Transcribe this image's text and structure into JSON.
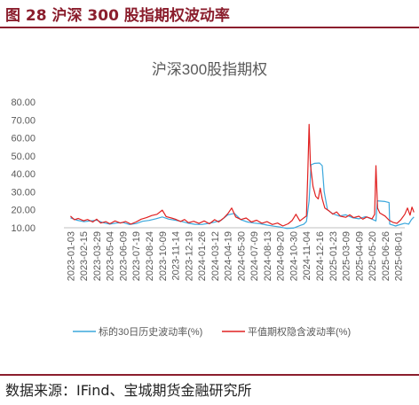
{
  "figure": {
    "title": "图 28 沪深 300 股指期权波动率",
    "source": "数据来源：IFind、宝城期货金融研究所"
  },
  "chart_data": {
    "type": "line",
    "title": "沪深300股指期权",
    "xlabel": "",
    "ylabel": "",
    "ylim": [
      10,
      80
    ],
    "yticks": [
      "10.00",
      "20.00",
      "30.00",
      "40.00",
      "50.00",
      "60.00",
      "70.00",
      "80.00"
    ],
    "grid": false,
    "legend": "bottom",
    "xticks": [
      "2023-01-03",
      "2023-02-15",
      "2023-03-29",
      "2023-05-04",
      "2023-06-09",
      "2023-07-19",
      "2023-08-24",
      "2023-10-09",
      "2023-11-14",
      "2023-12-19",
      "2024-01-26",
      "2024-03-12",
      "2024-04-19",
      "2024-05-30",
      "2024-07-09",
      "2024-08-13",
      "2024-09-20",
      "2024-10-30",
      "2024-11-04",
      "2024-12-16",
      "2025-01-23",
      "2025-03-09",
      "2025-04-09",
      "2025-05-20",
      "2025-06-26",
      "2025-08-01"
    ],
    "colors": {
      "hv": "#3BA7DC",
      "iv": "#E02020",
      "title": "#595959",
      "axis": "#595959"
    },
    "series": [
      {
        "name": "标的30日历史波动率(%)",
        "key": "hv",
        "points": [
          [
            0,
            15.5
          ],
          [
            0.5,
            14.2
          ],
          [
            1,
            13.4
          ],
          [
            1.5,
            13.8
          ],
          [
            2,
            14.2
          ],
          [
            2.5,
            12.8
          ],
          [
            3,
            12.0
          ],
          [
            3.5,
            12.6
          ],
          [
            4,
            12.9
          ],
          [
            4.5,
            11.8
          ],
          [
            5,
            12.3
          ],
          [
            5.5,
            13.6
          ],
          [
            6,
            14.1
          ],
          [
            6.5,
            15.0
          ],
          [
            7,
            16.0
          ],
          [
            7.5,
            14.8
          ],
          [
            8,
            14.2
          ],
          [
            8.5,
            13.5
          ],
          [
            9,
            12.5
          ],
          [
            9.5,
            11.9
          ],
          [
            10,
            11.8
          ],
          [
            10.5,
            12.4
          ],
          [
            11,
            13.1
          ],
          [
            11.5,
            14.2
          ],
          [
            12,
            17.2
          ],
          [
            12.5,
            18.0
          ],
          [
            13,
            14.5
          ],
          [
            13.5,
            13.2
          ],
          [
            14,
            12.6
          ],
          [
            14.5,
            12.2
          ],
          [
            15,
            11.5
          ],
          [
            15.5,
            10.9
          ],
          [
            16,
            10.4
          ],
          [
            16.5,
            9.6
          ],
          [
            17,
            9.8
          ],
          [
            17.5,
            11.2
          ],
          [
            17.8,
            12.0
          ],
          [
            18,
            13.5
          ],
          [
            18.2,
            25.0
          ],
          [
            18.35,
            45.0
          ],
          [
            18.6,
            45.8
          ],
          [
            19,
            46.0
          ],
          [
            19.2,
            44.5
          ],
          [
            19.35,
            30.0
          ],
          [
            19.6,
            20.0
          ],
          [
            20,
            17.8
          ],
          [
            20.5,
            16.5
          ],
          [
            21,
            17.2
          ],
          [
            21.5,
            15.6
          ],
          [
            22,
            15.0
          ],
          [
            22.5,
            16.2
          ],
          [
            23,
            14.8
          ],
          [
            23.3,
            13.8
          ],
          [
            23.4,
            25.0
          ],
          [
            24,
            24.6
          ],
          [
            24.3,
            24.0
          ],
          [
            24.35,
            12.0
          ],
          [
            24.8,
            11.0
          ],
          [
            25,
            11.5
          ],
          [
            25.5,
            12.5
          ],
          [
            25.8,
            12.0
          ],
          [
            26,
            14.5
          ],
          [
            26.2,
            16.0
          ]
        ]
      },
      {
        "name": "平值期权隐含波动率(%)",
        "key": "iv",
        "points": [
          [
            0,
            16.5
          ],
          [
            0.3,
            14.5
          ],
          [
            0.6,
            15.2
          ],
          [
            1,
            13.9
          ],
          [
            1.3,
            14.6
          ],
          [
            1.7,
            13.2
          ],
          [
            2,
            14.8
          ],
          [
            2.3,
            12.6
          ],
          [
            2.7,
            13.4
          ],
          [
            3,
            12.2
          ],
          [
            3.4,
            13.8
          ],
          [
            3.8,
            12.6
          ],
          [
            4.2,
            13.5
          ],
          [
            4.6,
            12.0
          ],
          [
            5,
            13.2
          ],
          [
            5.4,
            14.8
          ],
          [
            5.8,
            15.6
          ],
          [
            6.2,
            16.8
          ],
          [
            6.6,
            17.5
          ],
          [
            7,
            19.8
          ],
          [
            7.3,
            16.2
          ],
          [
            7.7,
            15.4
          ],
          [
            8,
            14.8
          ],
          [
            8.4,
            13.5
          ],
          [
            8.7,
            14.6
          ],
          [
            9,
            12.8
          ],
          [
            9.4,
            13.6
          ],
          [
            9.8,
            12.4
          ],
          [
            10.2,
            13.8
          ],
          [
            10.6,
            12.2
          ],
          [
            11,
            14.5
          ],
          [
            11.3,
            13.2
          ],
          [
            11.7,
            15.5
          ],
          [
            12,
            17.8
          ],
          [
            12.3,
            21.0
          ],
          [
            12.6,
            16.0
          ],
          [
            13,
            14.6
          ],
          [
            13.4,
            15.4
          ],
          [
            13.8,
            13.2
          ],
          [
            14.2,
            14.2
          ],
          [
            14.6,
            12.5
          ],
          [
            15,
            13.4
          ],
          [
            15.4,
            11.8
          ],
          [
            15.8,
            12.6
          ],
          [
            16.2,
            11.0
          ],
          [
            16.6,
            12.2
          ],
          [
            16.9,
            14.0
          ],
          [
            17.2,
            17.5
          ],
          [
            17.5,
            13.8
          ],
          [
            17.8,
            15.5
          ],
          [
            18,
            16.5
          ],
          [
            18.1,
            40.0
          ],
          [
            18.2,
            67.5
          ],
          [
            18.3,
            45.0
          ],
          [
            18.5,
            33.0
          ],
          [
            18.7,
            27.5
          ],
          [
            18.9,
            26.0
          ],
          [
            19.05,
            32.0
          ],
          [
            19.2,
            26.0
          ],
          [
            19.4,
            21.0
          ],
          [
            19.7,
            19.5
          ],
          [
            20,
            17.6
          ],
          [
            20.3,
            18.8
          ],
          [
            20.6,
            16.4
          ],
          [
            21,
            15.8
          ],
          [
            21.3,
            17.2
          ],
          [
            21.6,
            15.6
          ],
          [
            22,
            16.4
          ],
          [
            22.3,
            14.8
          ],
          [
            22.6,
            16.0
          ],
          [
            23,
            15.0
          ],
          [
            23.2,
            17.5
          ],
          [
            23.3,
            44.5
          ],
          [
            23.42,
            21.0
          ],
          [
            23.6,
            18.2
          ],
          [
            24,
            16.5
          ],
          [
            24.3,
            14.2
          ],
          [
            24.6,
            13.0
          ],
          [
            24.9,
            12.4
          ],
          [
            25.2,
            14.5
          ],
          [
            25.5,
            17.5
          ],
          [
            25.7,
            21.0
          ],
          [
            25.9,
            17.0
          ],
          [
            26.05,
            21.5
          ],
          [
            26.2,
            18.6
          ]
        ]
      }
    ]
  }
}
